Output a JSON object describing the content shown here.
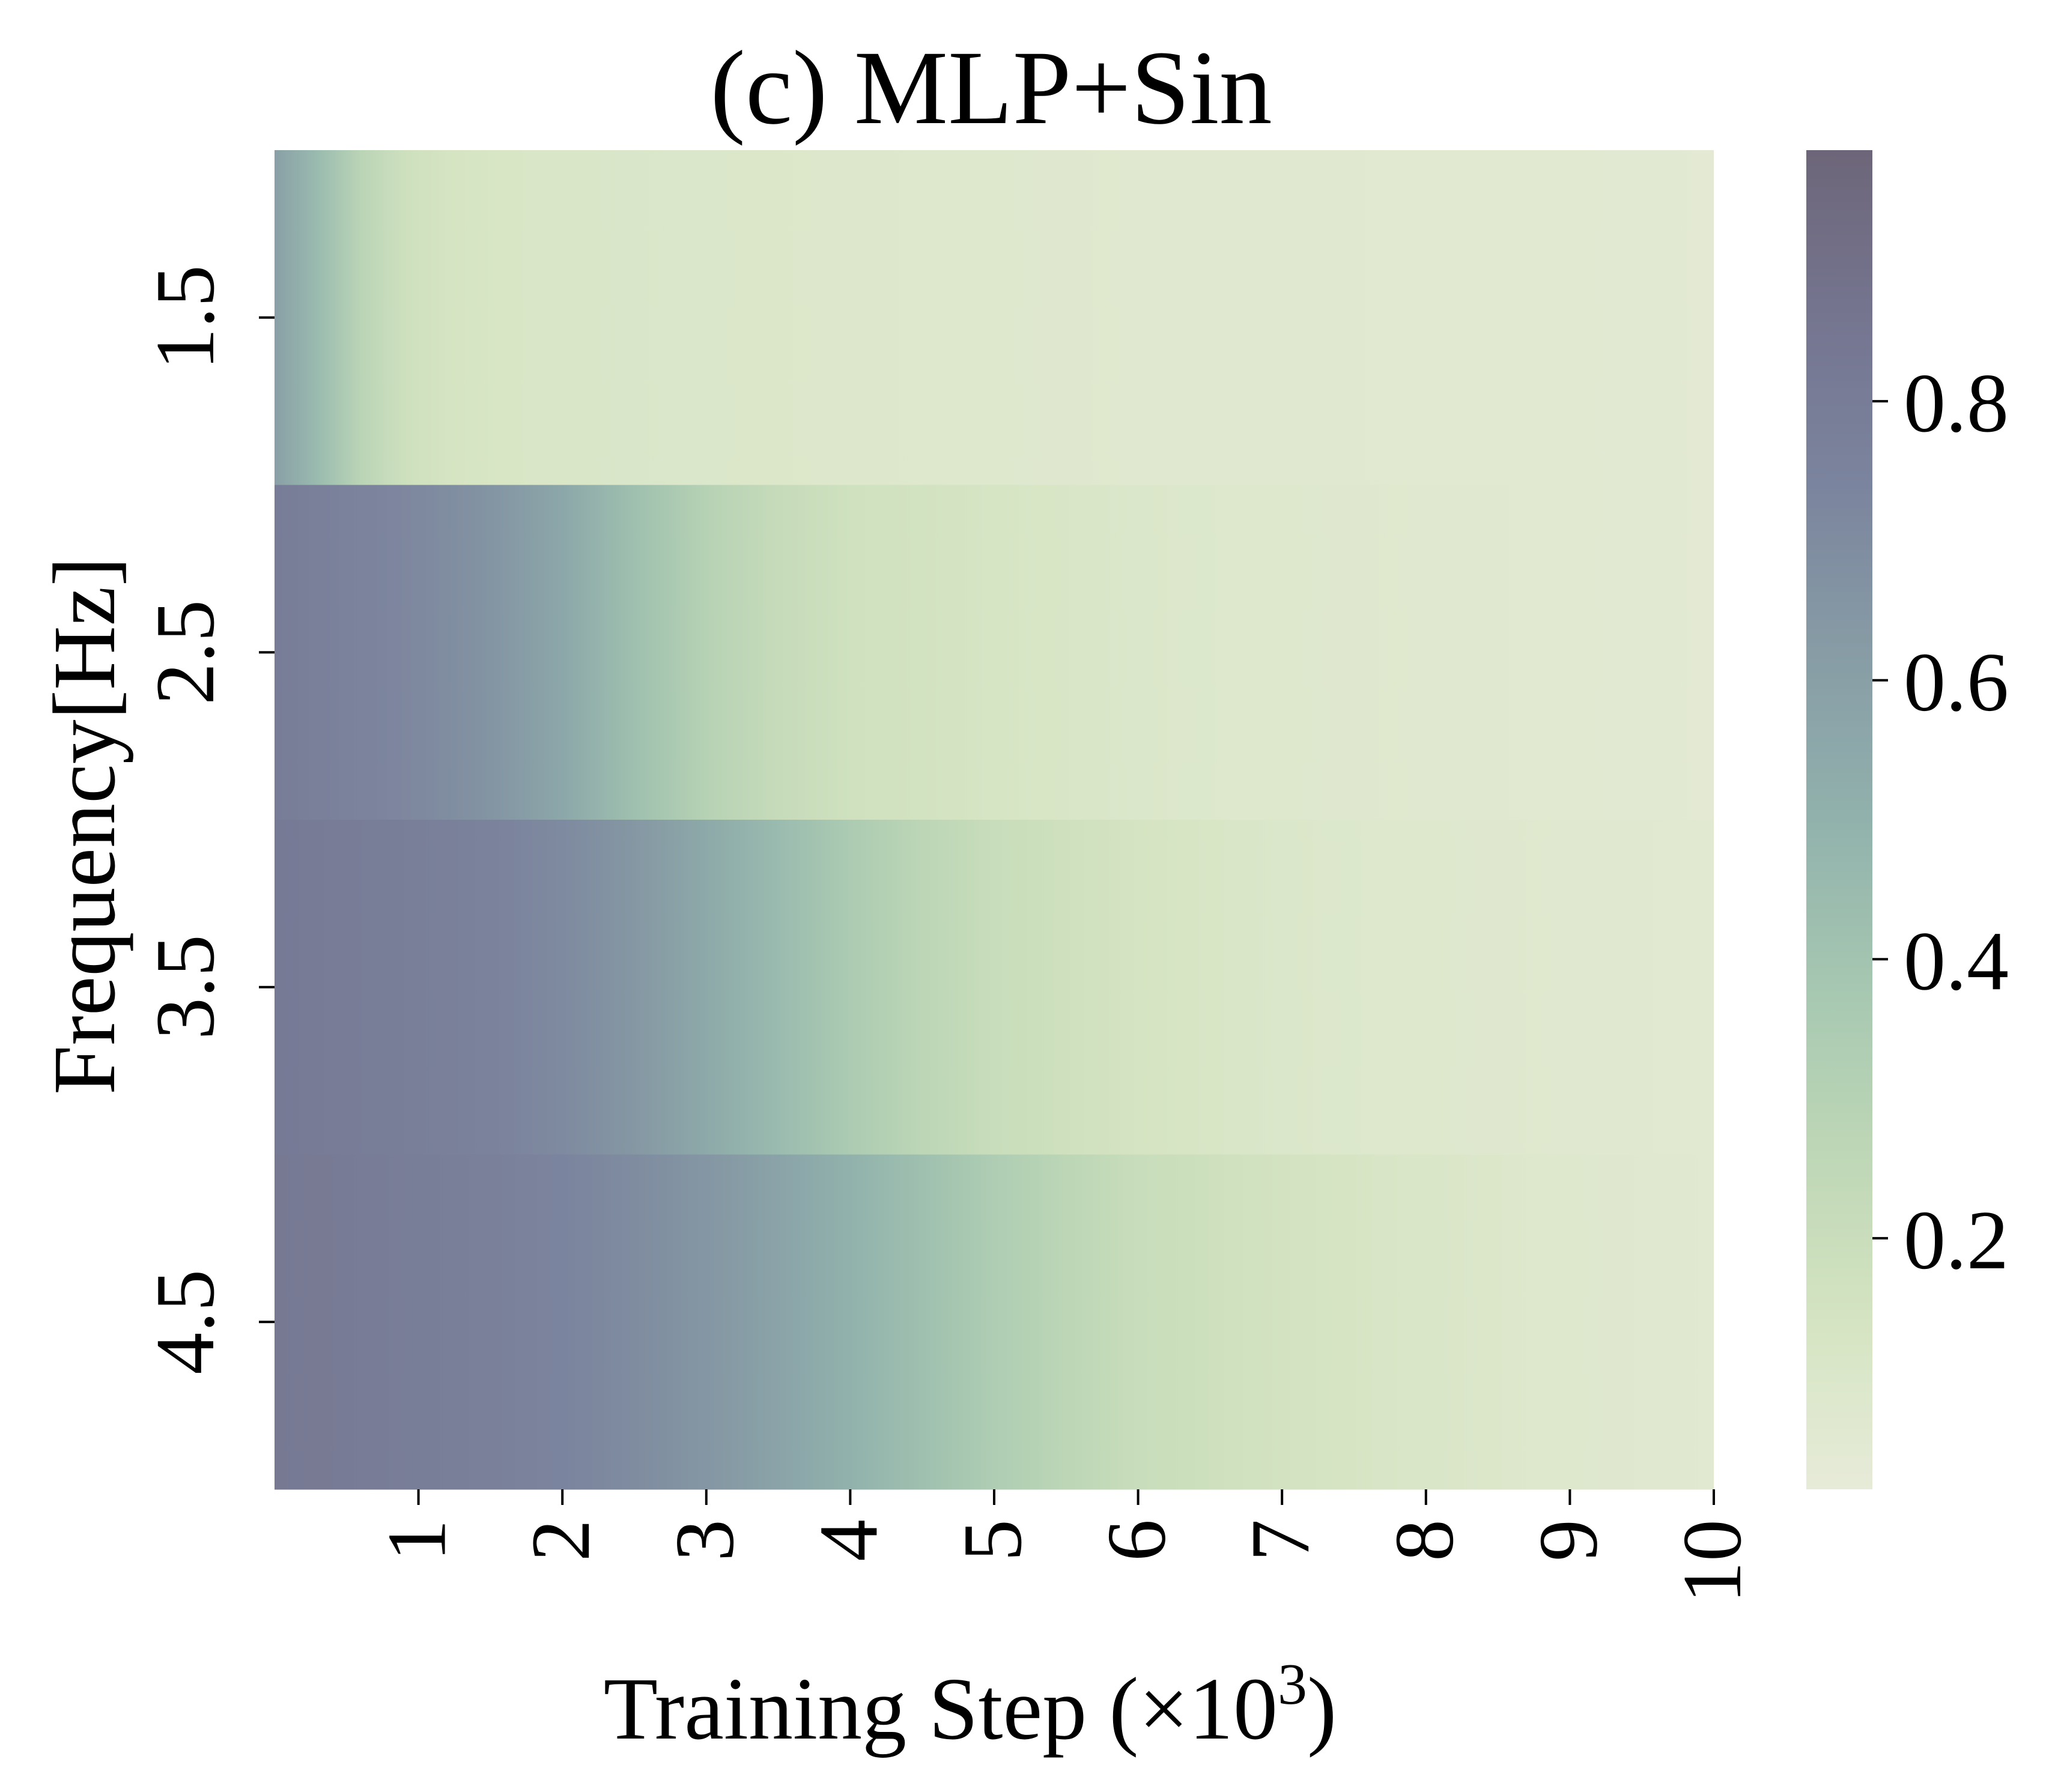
{
  "chart_data": {
    "type": "heatmap",
    "title": "(c) MLP+Sin",
    "xlabel": "Training Step (×10",
    "xlabel_sup": "3",
    "xlabel_close": ")",
    "ylabel": "Frequency[Hz]",
    "x_ticks": [
      1,
      2,
      3,
      4,
      5,
      6,
      7,
      8,
      9,
      10
    ],
    "xlim": [
      0,
      10
    ],
    "y_categories": [
      "1.5",
      "2.5",
      "3.5",
      "4.5"
    ],
    "colorbar": {
      "ticks": [
        0.2,
        0.4,
        0.6,
        0.8
      ],
      "tick_labels": [
        "0.2",
        "0.4",
        "0.6",
        "0.8"
      ],
      "range": [
        0.02,
        0.98
      ],
      "colors": [
        "#dde2c8",
        "#c3d9a8",
        "#a2c697",
        "#80af8f",
        "#629189",
        "#53717e",
        "#434f74",
        "#3a3a60",
        "#2f2540"
      ],
      "opacity": 0.7
    },
    "rows": [
      {
        "frequency": "1.5",
        "x": [
          0,
          0.3,
          0.6,
          0.9,
          1.2,
          1.6,
          2,
          3,
          4,
          5,
          6,
          7,
          8,
          9,
          10
        ],
        "values": [
          0.6,
          0.45,
          0.28,
          0.18,
          0.14,
          0.12,
          0.11,
          0.1,
          0.09,
          0.08,
          0.07,
          0.07,
          0.06,
          0.06,
          0.05
        ]
      },
      {
        "frequency": "2.5",
        "x": [
          0,
          0.5,
          1,
          1.5,
          2,
          2.5,
          3,
          3.5,
          4,
          5,
          6,
          7,
          8,
          9,
          10
        ],
        "values": [
          0.8,
          0.76,
          0.72,
          0.66,
          0.56,
          0.42,
          0.3,
          0.22,
          0.17,
          0.13,
          0.1,
          0.08,
          0.07,
          0.06,
          0.05
        ]
      },
      {
        "frequency": "3.5",
        "x": [
          0,
          0.5,
          1,
          1.5,
          2,
          2.5,
          3,
          3.5,
          4,
          4.5,
          5,
          6,
          7,
          8,
          9,
          10
        ],
        "values": [
          0.82,
          0.8,
          0.78,
          0.75,
          0.71,
          0.64,
          0.55,
          0.45,
          0.35,
          0.27,
          0.21,
          0.14,
          0.1,
          0.08,
          0.07,
          0.06
        ]
      },
      {
        "frequency": "4.5",
        "x": [
          0,
          0.5,
          1,
          1.5,
          2,
          2.5,
          3,
          3.5,
          4,
          4.5,
          5,
          5.5,
          6,
          7,
          8,
          9,
          10
        ],
        "values": [
          0.83,
          0.81,
          0.79,
          0.77,
          0.74,
          0.7,
          0.65,
          0.58,
          0.5,
          0.42,
          0.34,
          0.27,
          0.21,
          0.15,
          0.11,
          0.08,
          0.06
        ]
      }
    ]
  }
}
